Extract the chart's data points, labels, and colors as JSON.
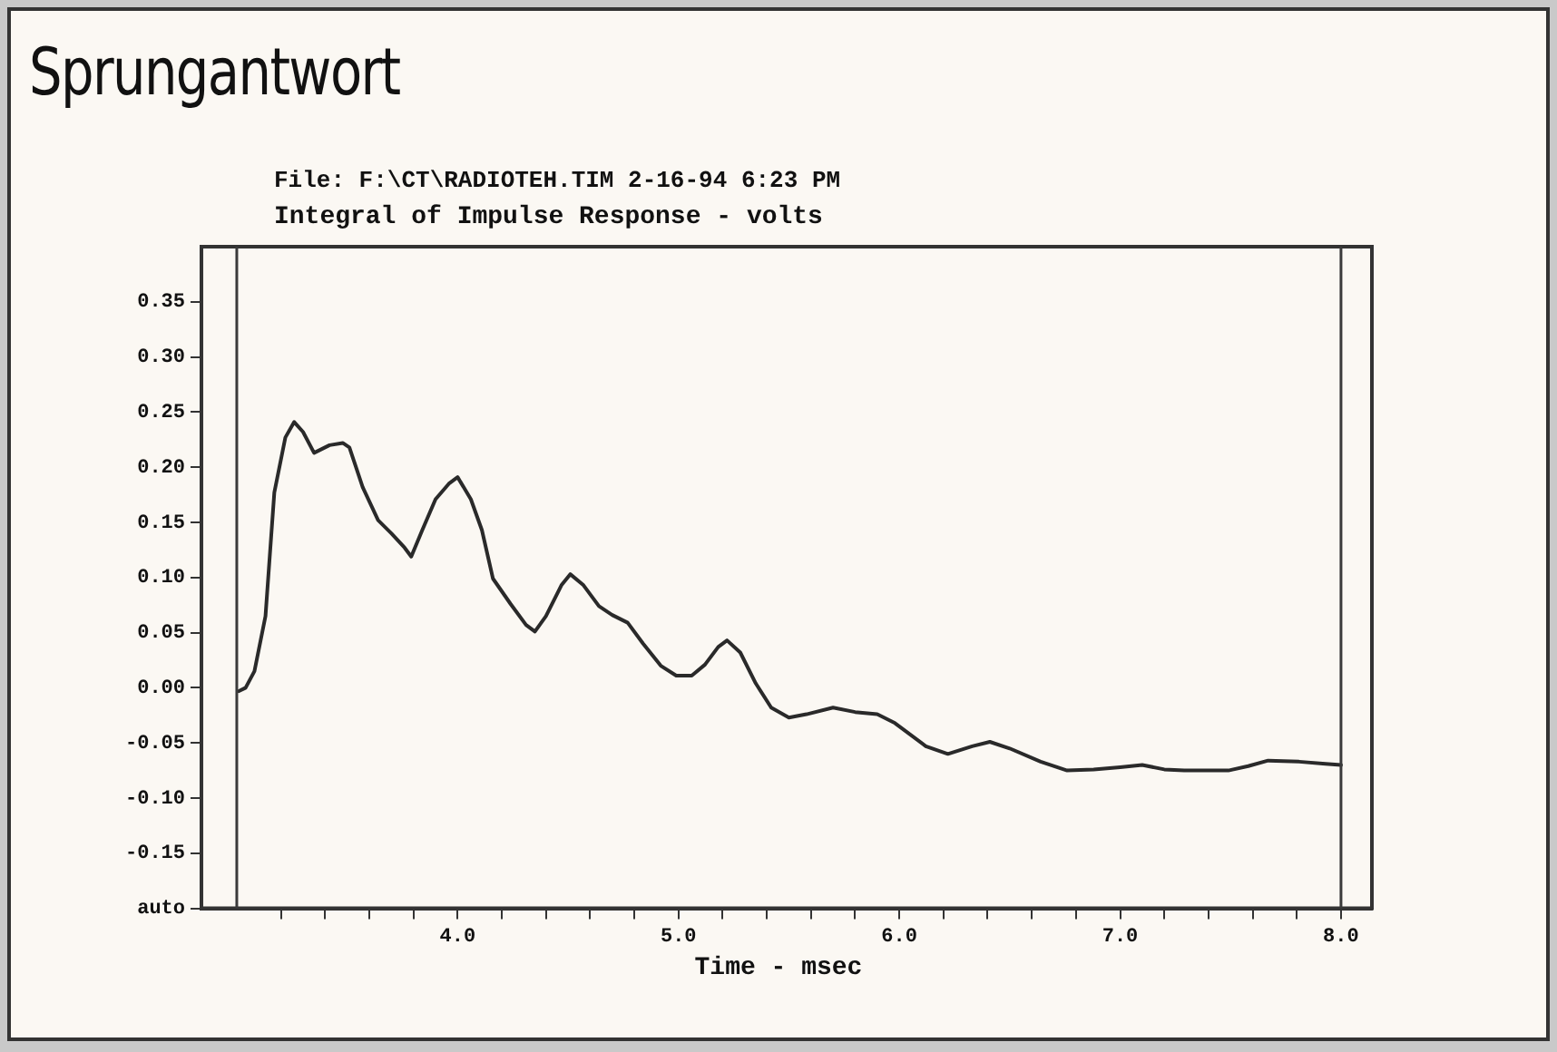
{
  "chart_data": {
    "type": "line",
    "title": "Sprungantwort",
    "subtitle": "File: F:\\CT\\RADIOTEH.TIM 2-16-94 6:23 PM",
    "ylabel": "Integral of Impulse Response - volts",
    "xlabel": "Time - msec",
    "xlim": [
      2.84,
      8.14
    ],
    "ylim": [
      -0.2,
      0.4
    ],
    "xticks": [
      {
        "value": 3.2,
        "label": null
      },
      {
        "value": 3.4,
        "label": null
      },
      {
        "value": 3.6,
        "label": null
      },
      {
        "value": 3.8,
        "label": null
      },
      {
        "value": 4,
        "label": "4.0"
      },
      {
        "value": 4.2,
        "label": null
      },
      {
        "value": 4.4,
        "label": null
      },
      {
        "value": 4.6,
        "label": null
      },
      {
        "value": 4.8,
        "label": null
      },
      {
        "value": 5,
        "label": "5.0"
      },
      {
        "value": 5.2,
        "label": null
      },
      {
        "value": 5.4,
        "label": null
      },
      {
        "value": 5.6,
        "label": null
      },
      {
        "value": 5.8,
        "label": null
      },
      {
        "value": 6,
        "label": "6.0"
      },
      {
        "value": 6.2,
        "label": null
      },
      {
        "value": 6.4,
        "label": null
      },
      {
        "value": 6.6,
        "label": null
      },
      {
        "value": 6.8,
        "label": null
      },
      {
        "value": 7,
        "label": "7.0"
      },
      {
        "value": 7.2,
        "label": null
      },
      {
        "value": 7.4,
        "label": null
      },
      {
        "value": 7.6,
        "label": null
      },
      {
        "value": 7.8,
        "label": null
      },
      {
        "value": 8,
        "label": "8.0"
      }
    ],
    "yticks": [
      {
        "value": -0.2,
        "label": "auto"
      },
      {
        "value": -0.15,
        "label": "-0.15"
      },
      {
        "value": -0.1,
        "label": "-0.10"
      },
      {
        "value": -0.05,
        "label": "-0.05"
      },
      {
        "value": 0,
        "label": "0.00"
      },
      {
        "value": 0.05,
        "label": "0.05"
      },
      {
        "value": 0.1,
        "label": "0.10"
      },
      {
        "value": 0.15,
        "label": "0.15"
      },
      {
        "value": 0.2,
        "label": "0.20"
      },
      {
        "value": 0.25,
        "label": "0.25"
      },
      {
        "value": 0.3,
        "label": "0.30"
      },
      {
        "value": 0.35,
        "label": "0.35"
      }
    ],
    "ref_lines": [
      {
        "axis": "x",
        "value": 3.0,
        "color": "#3a3a3a"
      },
      {
        "axis": "x",
        "value": 8.0,
        "color": "#3a3a3a"
      }
    ],
    "grid": false,
    "legend": false,
    "marker": "none",
    "line_style": "solid",
    "series": [
      {
        "color": "#2a2a2a",
        "x": [
          3.01,
          3.04,
          3.08,
          3.13,
          3.17,
          3.22,
          3.26,
          3.3,
          3.35,
          3.42,
          3.48,
          3.51,
          3.57,
          3.64,
          3.7,
          3.76,
          3.79,
          3.84,
          3.9,
          3.96,
          4.0,
          4.06,
          4.11,
          4.16,
          4.24,
          4.31,
          4.35,
          4.4,
          4.47,
          4.51,
          4.57,
          4.64,
          4.7,
          4.77,
          4.84,
          4.92,
          4.99,
          5.06,
          5.12,
          5.18,
          5.22,
          5.28,
          5.35,
          5.42,
          5.5,
          5.58,
          5.7,
          5.8,
          5.9,
          5.98,
          6.12,
          6.22,
          6.33,
          6.41,
          6.5,
          6.64,
          6.76,
          6.88,
          7.0,
          7.1,
          7.2,
          7.29,
          7.49,
          7.58,
          7.67,
          7.81,
          7.93,
          8.0
        ],
        "values": [
          -0.003,
          0.0,
          0.015,
          0.065,
          0.177,
          0.227,
          0.241,
          0.232,
          0.213,
          0.22,
          0.222,
          0.218,
          0.182,
          0.152,
          0.14,
          0.127,
          0.119,
          0.143,
          0.171,
          0.185,
          0.191,
          0.171,
          0.143,
          0.099,
          0.076,
          0.057,
          0.051,
          0.065,
          0.093,
          0.103,
          0.093,
          0.074,
          0.066,
          0.059,
          0.04,
          0.02,
          0.011,
          0.011,
          0.021,
          0.037,
          0.043,
          0.032,
          0.004,
          -0.018,
          -0.027,
          -0.024,
          -0.018,
          -0.022,
          -0.024,
          -0.032,
          -0.053,
          -0.06,
          -0.053,
          -0.049,
          -0.055,
          -0.067,
          -0.075,
          -0.074,
          -0.072,
          -0.07,
          -0.074,
          -0.075,
          -0.075,
          -0.071,
          -0.066,
          -0.067,
          -0.069,
          -0.07
        ]
      }
    ]
  }
}
